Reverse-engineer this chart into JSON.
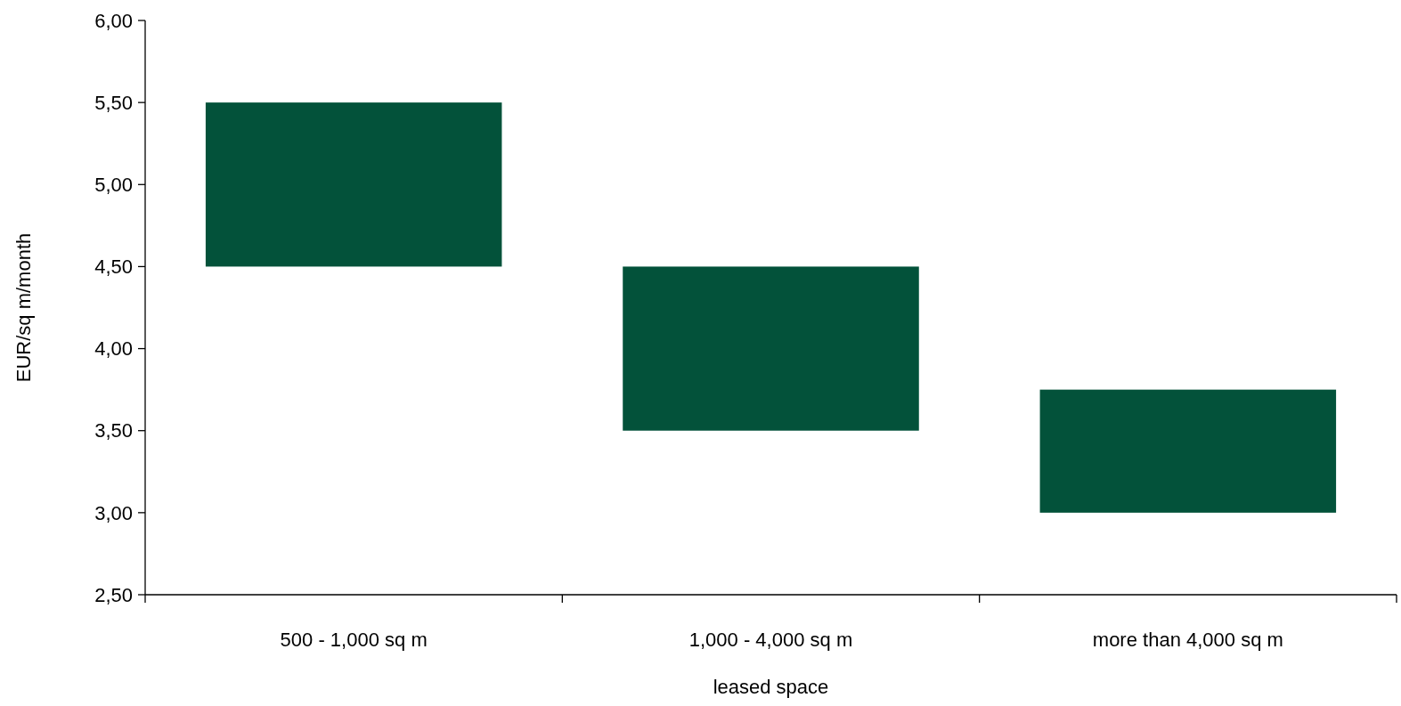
{
  "chart_data": {
    "type": "bar",
    "xlabel": "leased space",
    "ylabel": "EUR/sq m/month",
    "categories": [
      "500 - 1,000 sq m",
      "1,000 - 4,000 sq m",
      "more than 4,000 sq m"
    ],
    "base": [
      4.5,
      3.5,
      3.0
    ],
    "values": [
      1.0,
      1.0,
      0.75
    ],
    "color": "#03523a",
    "ylim": [
      2.5,
      6.0
    ],
    "yticks": [
      {
        "value": 2.5,
        "label": "2,50"
      },
      {
        "value": 3.0,
        "label": "3,00"
      },
      {
        "value": 3.5,
        "label": "3,50"
      },
      {
        "value": 4.0,
        "label": "4,00"
      },
      {
        "value": 4.5,
        "label": "4,50"
      },
      {
        "value": 5.0,
        "label": "5,00"
      },
      {
        "value": 5.5,
        "label": "5,50"
      },
      {
        "value": 6.0,
        "label": "6,00"
      }
    ]
  }
}
